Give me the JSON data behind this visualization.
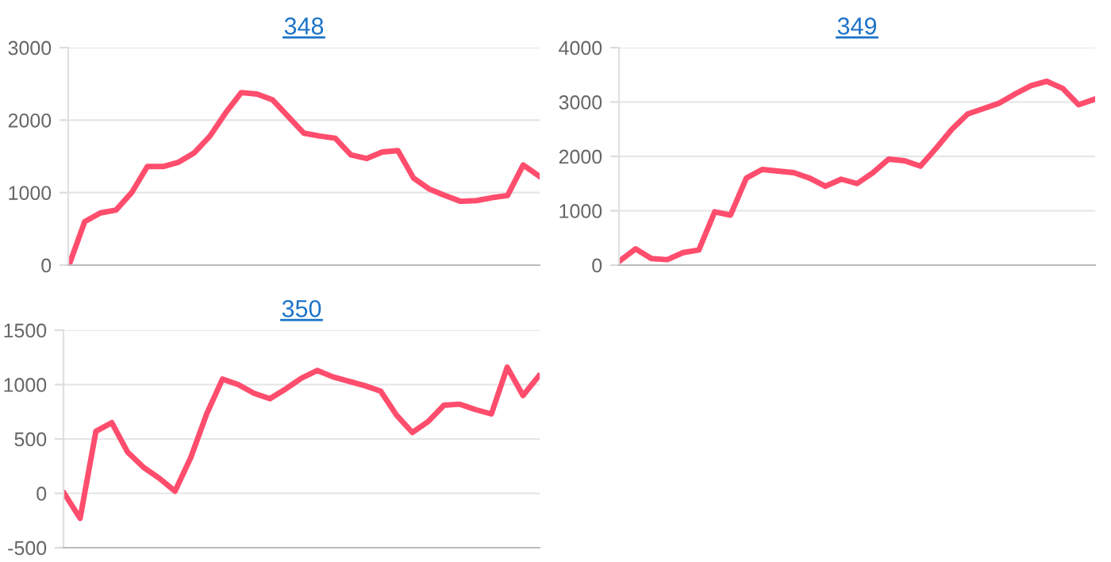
{
  "chart_data": [
    {
      "type": "line",
      "title": "348",
      "categories": [
        null,
        null,
        null,
        null,
        null,
        null,
        null,
        null,
        null,
        null,
        null,
        null,
        null,
        null,
        null,
        null,
        null,
        null,
        null,
        null,
        null,
        null,
        null,
        null,
        null,
        null,
        null,
        null,
        null,
        null,
        null
      ],
      "series": [
        {
          "color": "#ff4d6d",
          "values": [
            0,
            600,
            720,
            760,
            1000,
            1360,
            1360,
            1420,
            1550,
            1780,
            2100,
            2380,
            2360,
            2280,
            2050,
            1820,
            1780,
            1750,
            1520,
            1470,
            1560,
            1580,
            1200,
            1050,
            960,
            880,
            890,
            930,
            960,
            1380,
            1230
          ]
        }
      ],
      "ylim": [
        0,
        3000
      ],
      "yticks": [
        0,
        1000,
        2000,
        3000
      ],
      "grid": "y",
      "tick_labels": "y",
      "marker": "none",
      "line_style": "solid"
    },
    {
      "type": "line",
      "title": "349",
      "categories": [
        null,
        null,
        null,
        null,
        null,
        null,
        null,
        null,
        null,
        null,
        null,
        null,
        null,
        null,
        null,
        null,
        null,
        null,
        null,
        null,
        null,
        null,
        null,
        null,
        null,
        null,
        null,
        null,
        null,
        null,
        null
      ],
      "series": [
        {
          "color": "#ff4d6d",
          "values": [
            80,
            300,
            120,
            100,
            230,
            280,
            980,
            920,
            1600,
            1760,
            1730,
            1700,
            1600,
            1450,
            1580,
            1500,
            1700,
            1950,
            1920,
            1820,
            2150,
            2500,
            2780,
            2880,
            2980,
            3150,
            3300,
            3380,
            3250,
            2950,
            3050
          ]
        }
      ],
      "ylim": [
        0,
        4000
      ],
      "yticks": [
        0,
        1000,
        2000,
        3000,
        4000
      ],
      "grid": "y",
      "tick_labels": "y",
      "marker": "none",
      "line_style": "solid"
    },
    {
      "type": "line",
      "title": "350",
      "categories": [
        null,
        null,
        null,
        null,
        null,
        null,
        null,
        null,
        null,
        null,
        null,
        null,
        null,
        null,
        null,
        null,
        null,
        null,
        null,
        null,
        null,
        null,
        null,
        null,
        null,
        null,
        null,
        null,
        null,
        null,
        null
      ],
      "series": [
        {
          "color": "#ff4d6d",
          "values": [
            0,
            -230,
            570,
            650,
            380,
            240,
            140,
            20,
            330,
            730,
            1050,
            1000,
            920,
            870,
            960,
            1060,
            1130,
            1070,
            1030,
            990,
            940,
            720,
            560,
            660,
            810,
            820,
            770,
            730,
            1160,
            900,
            1080
          ]
        }
      ],
      "ylim": [
        -500,
        1500
      ],
      "yticks": [
        -500,
        0,
        500,
        1000,
        1500
      ],
      "grid": "y",
      "tick_labels": "y",
      "marker": "none",
      "line_style": "solid"
    }
  ]
}
